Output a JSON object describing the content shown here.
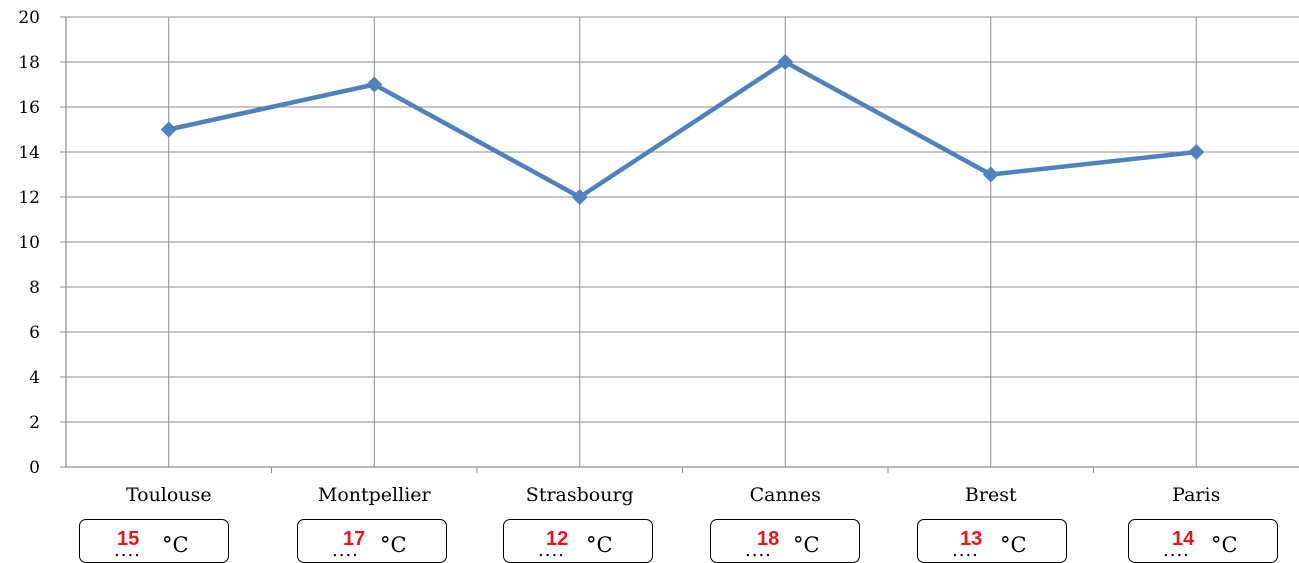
{
  "chart_data": {
    "type": "line",
    "categories": [
      "Toulouse",
      "Montpellier",
      "Strasbourg",
      "Cannes",
      "Brest",
      "Paris"
    ],
    "values": [
      15,
      17,
      12,
      18,
      13,
      14
    ],
    "ylim": [
      0,
      20
    ],
    "yticks": [
      "0",
      "2",
      "4",
      "6",
      "8",
      "10",
      "12",
      "14",
      "16",
      "18",
      "20"
    ],
    "grid": true,
    "marker": "diamond",
    "line_color": "#4f81bd"
  },
  "answers": [
    {
      "value": "15",
      "dots": "....",
      "unit": "°C"
    },
    {
      "value": "17",
      "dots": "....",
      "unit": "°C"
    },
    {
      "value": "12",
      "dots": "....",
      "unit": "°C"
    },
    {
      "value": "18",
      "dots": "....",
      "unit": "°C"
    },
    {
      "value": "13",
      "dots": "....",
      "unit": "°C"
    },
    {
      "value": "14",
      "dots": "....",
      "unit": "°C"
    }
  ],
  "colors": {
    "answer": "#e8141b",
    "grid": "#8c8c8c"
  }
}
